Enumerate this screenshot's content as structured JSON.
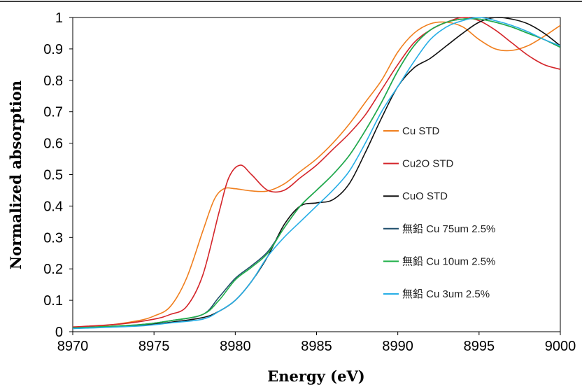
{
  "chart_data": {
    "type": "line",
    "xlabel": "Energy (eV)",
    "ylabel": "Normalized absorption",
    "xlim": [
      8970,
      9000
    ],
    "ylim": [
      0,
      1
    ],
    "x_ticks": [
      "8970",
      "8975",
      "8980",
      "8985",
      "8990",
      "8995",
      "9000"
    ],
    "y_ticks": [
      "0",
      "0.1",
      "0.2",
      "0.3",
      "0.4",
      "0.5",
      "0.6",
      "0.7",
      "0.8",
      "0.9",
      "1"
    ],
    "grid": false,
    "legend_position": "right",
    "series": [
      {
        "name": "Cu STD",
        "color": "#f07f1e",
        "points": [
          [
            8970,
            0.015
          ],
          [
            8972,
            0.02
          ],
          [
            8974,
            0.035
          ],
          [
            8975,
            0.05
          ],
          [
            8976,
            0.08
          ],
          [
            8977,
            0.17
          ],
          [
            8978,
            0.32
          ],
          [
            8978.7,
            0.42
          ],
          [
            8979.3,
            0.455
          ],
          [
            8980,
            0.455
          ],
          [
            8981,
            0.448
          ],
          [
            8982,
            0.448
          ],
          [
            8983,
            0.47
          ],
          [
            8984,
            0.51
          ],
          [
            8985,
            0.55
          ],
          [
            8986,
            0.6
          ],
          [
            8987,
            0.66
          ],
          [
            8988,
            0.73
          ],
          [
            8989,
            0.8
          ],
          [
            8990,
            0.89
          ],
          [
            8991,
            0.95
          ],
          [
            8992,
            0.98
          ],
          [
            8993,
            0.985
          ],
          [
            8994,
            0.97
          ],
          [
            8995,
            0.93
          ],
          [
            8996,
            0.9
          ],
          [
            8997,
            0.895
          ],
          [
            8998,
            0.91
          ],
          [
            8999,
            0.94
          ],
          [
            9000,
            0.975
          ]
        ]
      },
      {
        "name": "Cu2O STD",
        "color": "#d4252a",
        "points": [
          [
            8970,
            0.015
          ],
          [
            8973,
            0.025
          ],
          [
            8975,
            0.04
          ],
          [
            8976,
            0.055
          ],
          [
            8977,
            0.08
          ],
          [
            8978,
            0.18
          ],
          [
            8979,
            0.38
          ],
          [
            8979.6,
            0.49
          ],
          [
            8980.3,
            0.53
          ],
          [
            8981,
            0.5
          ],
          [
            8982,
            0.45
          ],
          [
            8983,
            0.45
          ],
          [
            8984,
            0.49
          ],
          [
            8985,
            0.53
          ],
          [
            8986,
            0.58
          ],
          [
            8987,
            0.63
          ],
          [
            8988,
            0.69
          ],
          [
            8989,
            0.77
          ],
          [
            8990,
            0.85
          ],
          [
            8991,
            0.92
          ],
          [
            8992,
            0.96
          ],
          [
            8993,
            0.985
          ],
          [
            8994,
            1.0
          ],
          [
            8995,
            0.99
          ],
          [
            8996,
            0.96
          ],
          [
            8997,
            0.92
          ],
          [
            8998,
            0.88
          ],
          [
            8999,
            0.85
          ],
          [
            9000,
            0.835
          ]
        ]
      },
      {
        "name": "CuO STD",
        "color": "#111111",
        "points": [
          [
            8970,
            0.012
          ],
          [
            8974,
            0.02
          ],
          [
            8976,
            0.03
          ],
          [
            8978,
            0.045
          ],
          [
            8979,
            0.065
          ],
          [
            8980,
            0.1
          ],
          [
            8981,
            0.16
          ],
          [
            8982,
            0.24
          ],
          [
            8983,
            0.34
          ],
          [
            8984,
            0.4
          ],
          [
            8985,
            0.41
          ],
          [
            8986,
            0.42
          ],
          [
            8987,
            0.47
          ],
          [
            8988,
            0.57
          ],
          [
            8989,
            0.68
          ],
          [
            8990,
            0.78
          ],
          [
            8991,
            0.84
          ],
          [
            8992,
            0.87
          ],
          [
            8993,
            0.91
          ],
          [
            8994,
            0.95
          ],
          [
            8995,
            0.985
          ],
          [
            8996,
            1.0
          ],
          [
            8997,
            0.995
          ],
          [
            8998,
            0.98
          ],
          [
            8999,
            0.95
          ],
          [
            9000,
            0.91
          ]
        ]
      },
      {
        "name": "無鉛 Cu 75um 2.5%",
        "color": "#1f4e6b",
        "points": [
          [
            8970,
            0.012
          ],
          [
            8974,
            0.022
          ],
          [
            8976,
            0.035
          ],
          [
            8978,
            0.055
          ],
          [
            8979,
            0.11
          ],
          [
            8980,
            0.17
          ],
          [
            8981,
            0.21
          ],
          [
            8982,
            0.255
          ],
          [
            8983,
            0.33
          ],
          [
            8984,
            0.4
          ],
          [
            8985,
            0.45
          ],
          [
            8986,
            0.5
          ],
          [
            8987,
            0.56
          ],
          [
            8988,
            0.64
          ],
          [
            8989,
            0.73
          ],
          [
            8990,
            0.83
          ],
          [
            8991,
            0.91
          ],
          [
            8992,
            0.96
          ],
          [
            8993,
            0.985
          ],
          [
            8994,
            0.995
          ],
          [
            8995,
            0.995
          ],
          [
            8996,
            0.985
          ],
          [
            8997,
            0.97
          ],
          [
            8998,
            0.95
          ],
          [
            8999,
            0.93
          ],
          [
            9000,
            0.905
          ]
        ]
      },
      {
        "name": "無鉛 Cu 10um 2.5%",
        "color": "#21b04a",
        "points": [
          [
            8970,
            0.012
          ],
          [
            8974,
            0.022
          ],
          [
            8976,
            0.035
          ],
          [
            8978,
            0.055
          ],
          [
            8979,
            0.1
          ],
          [
            8980,
            0.165
          ],
          [
            8981,
            0.205
          ],
          [
            8982,
            0.25
          ],
          [
            8983,
            0.33
          ],
          [
            8984,
            0.4
          ],
          [
            8985,
            0.45
          ],
          [
            8986,
            0.5
          ],
          [
            8987,
            0.56
          ],
          [
            8988,
            0.64
          ],
          [
            8989,
            0.73
          ],
          [
            8990,
            0.83
          ],
          [
            8991,
            0.91
          ],
          [
            8992,
            0.96
          ],
          [
            8993,
            0.985
          ],
          [
            8994,
            0.995
          ],
          [
            8995,
            0.995
          ],
          [
            8996,
            0.985
          ],
          [
            8997,
            0.97
          ],
          [
            8998,
            0.95
          ],
          [
            8999,
            0.93
          ],
          [
            9000,
            0.905
          ]
        ]
      },
      {
        "name": "無鉛 Cu 3um 2.5%",
        "color": "#27aee6",
        "points": [
          [
            8970,
            0.01
          ],
          [
            8974,
            0.018
          ],
          [
            8976,
            0.028
          ],
          [
            8978,
            0.04
          ],
          [
            8979,
            0.065
          ],
          [
            8980,
            0.1
          ],
          [
            8981,
            0.16
          ],
          [
            8982,
            0.24
          ],
          [
            8983,
            0.3
          ],
          [
            8984,
            0.35
          ],
          [
            8985,
            0.4
          ],
          [
            8986,
            0.45
          ],
          [
            8987,
            0.51
          ],
          [
            8988,
            0.6
          ],
          [
            8989,
            0.7
          ],
          [
            8990,
            0.78
          ],
          [
            8991,
            0.86
          ],
          [
            8992,
            0.93
          ],
          [
            8993,
            0.97
          ],
          [
            8994,
            0.99
          ],
          [
            8995,
            1.0
          ],
          [
            8996,
            0.99
          ],
          [
            8997,
            0.975
          ],
          [
            8998,
            0.955
          ],
          [
            8999,
            0.93
          ],
          [
            9000,
            0.91
          ]
        ]
      }
    ]
  }
}
